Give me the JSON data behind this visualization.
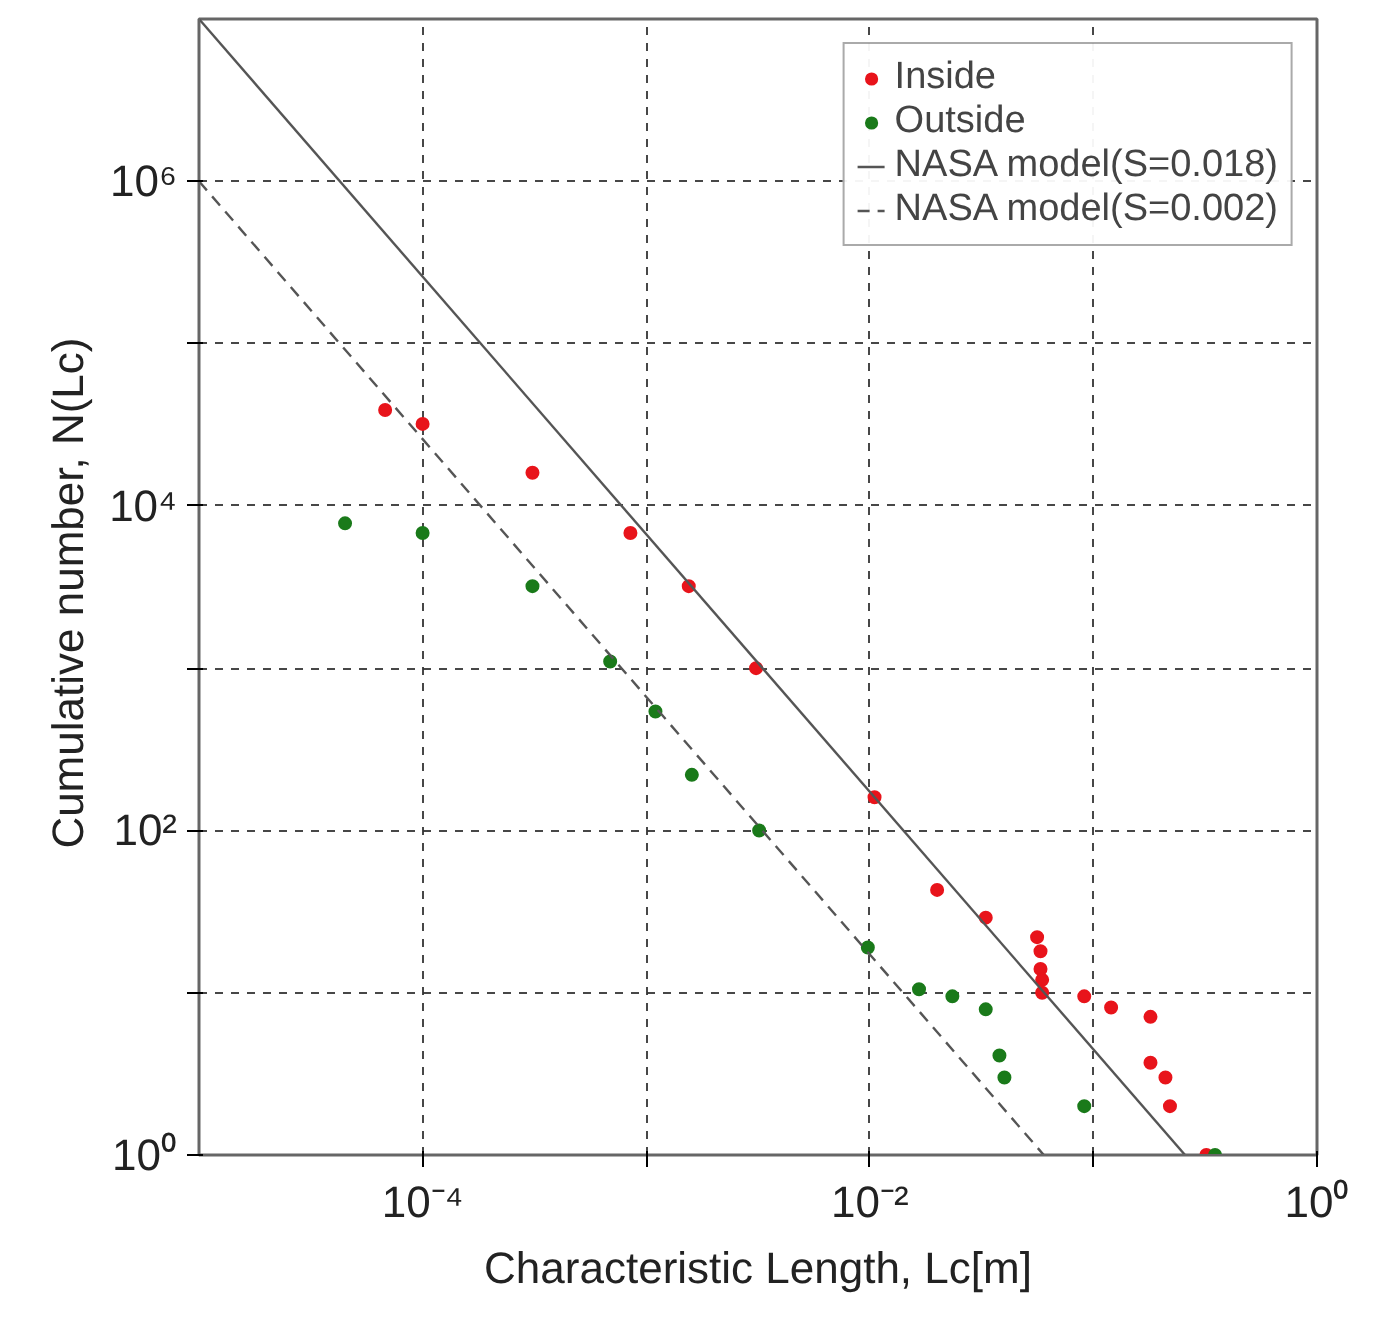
{
  "chart_data": {
    "type": "scatter",
    "xlabel": "Characteristic Length, Lc[m]",
    "ylabel": "Cumulative number,  N(Lc)",
    "log": "xy",
    "grid": true,
    "legend": "top right",
    "xlim": [
      1e-05,
      1
    ],
    "ylim": [
      1,
      10000000
    ],
    "xticks": [
      {
        "value": 0.0001,
        "label": "10⁻⁴"
      },
      {
        "value": 0.001,
        "label": null
      },
      {
        "value": 0.01,
        "label": "10⁻²"
      },
      {
        "value": 0.1,
        "label": null
      },
      {
        "value": 1,
        "label": "10⁰"
      }
    ],
    "yticks": [
      {
        "value": 1,
        "label": "10⁰"
      },
      {
        "value": 10,
        "label": null
      },
      {
        "value": 100,
        "label": "10²"
      },
      {
        "value": 1000,
        "label": null
      },
      {
        "value": 10000,
        "label": "10⁴"
      },
      {
        "value": 100000,
        "label": null
      },
      {
        "value": 1000000,
        "label": "10⁶"
      }
    ],
    "series": [
      {
        "name": "Inside",
        "marker": "circle",
        "color": "#e8141b",
        "x": [
          6.8e-05,
          0.0001,
          0.00031,
          0.00085,
          0.00155,
          0.0031,
          0.0105,
          0.02,
          0.033,
          0.056,
          0.058,
          0.058,
          0.059,
          0.059,
          0.091,
          0.12,
          0.18,
          0.18,
          0.21,
          0.22,
          0.32
        ],
        "values": [
          39000,
          32000,
          16000,
          6800,
          3200,
          1000,
          160,
          43,
          29,
          22,
          18,
          14,
          12,
          10,
          9.5,
          8.1,
          7.1,
          3.7,
          3.0,
          2.0,
          1
        ]
      },
      {
        "name": "Outside",
        "marker": "circle",
        "color": "#1a7a1a",
        "x": [
          4.5e-05,
          0.0001,
          0.00031,
          0.00069,
          0.0011,
          0.0016,
          0.0032,
          0.0098,
          0.0166,
          0.0234,
          0.033,
          0.038,
          0.04,
          0.091,
          0.35
        ],
        "values": [
          7800,
          6800,
          3200,
          1100,
          540,
          220,
          100,
          19,
          10.5,
          9.5,
          7.9,
          4.1,
          3.0,
          2.0,
          1
        ]
      },
      {
        "name": "NASA model(S=0.018)",
        "type": "line",
        "marker": "none",
        "line_style": "solid",
        "color": "#555555",
        "x": [
          1e-05,
          0.257
        ],
        "values": [
          10000000,
          1
        ]
      },
      {
        "name": "NASA model(S=0.002)",
        "type": "line",
        "marker": "none",
        "line_style": "dashed",
        "color": "#555555",
        "x": [
          1e-05,
          0.06
        ],
        "values": [
          1000000,
          1
        ]
      }
    ]
  }
}
